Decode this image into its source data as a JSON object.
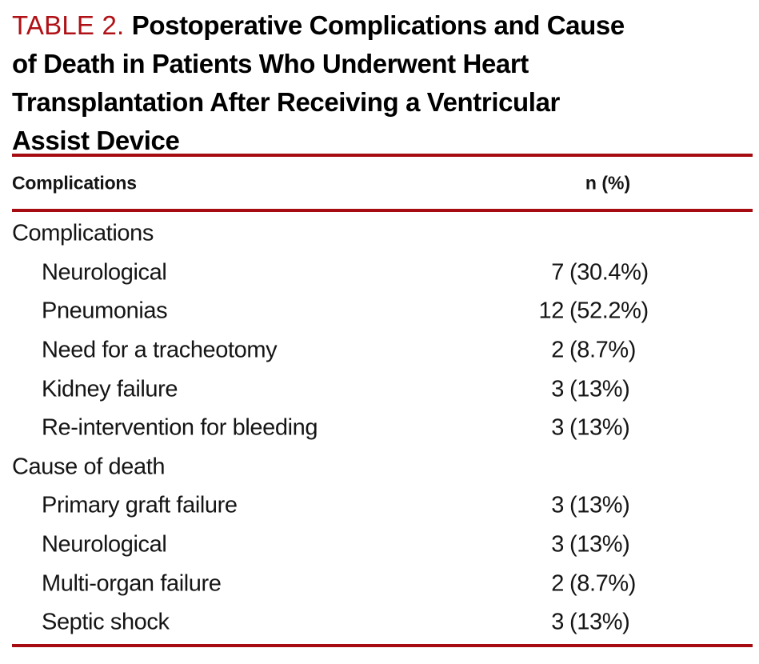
{
  "table": {
    "label": "TABLE 2.",
    "title_lines": [
      "Postoperative Complications and Cause",
      "of Death in Patients Who Underwent Heart",
      "Transplantation After Receiving a Ventricular",
      "Assist Device"
    ],
    "title_full": "Postoperative Complications and Cause of Death in Patients Who Underwent Heart Transplantation After Receiving a Ventricular Assist Device",
    "columns": [
      "Complications",
      "n (%)"
    ],
    "rows": [
      {
        "label": "Complications",
        "n": "",
        "pct": "",
        "value": "",
        "indent": false,
        "section": true
      },
      {
        "label": "Neurological",
        "n": "7",
        "pct": "(30.4%)",
        "value": "7 (30.4%)",
        "indent": true,
        "section": false
      },
      {
        "label": "Pneumonias",
        "n": "12",
        "pct": "(52.2%)",
        "value": "12 (52.2%)",
        "indent": true,
        "section": false
      },
      {
        "label": "Need for a tracheotomy",
        "n": "2",
        "pct": "(8.7%)",
        "value": "2 (8.7%)",
        "indent": true,
        "section": false
      },
      {
        "label": "Kidney failure",
        "n": "3",
        "pct": "(13%)",
        "value": "3 (13%)",
        "indent": true,
        "section": false
      },
      {
        "label": "Re-intervention for bleeding",
        "n": "3",
        "pct": "(13%)",
        "value": "3 (13%)",
        "indent": true,
        "section": false
      },
      {
        "label": "Cause of death",
        "n": "",
        "pct": "",
        "value": "",
        "indent": false,
        "section": true
      },
      {
        "label": "Primary graft failure",
        "n": "3",
        "pct": "(13%)",
        "value": "3 (13%)",
        "indent": true,
        "section": false
      },
      {
        "label": "Neurological",
        "n": "3",
        "pct": "(13%)",
        "value": "3 (13%)",
        "indent": true,
        "section": false
      },
      {
        "label": "Multi-organ failure",
        "n": "2",
        "pct": "(8.7%)",
        "value": "2 (8.7%)",
        "indent": true,
        "section": false
      },
      {
        "label": "Septic shock",
        "n": "3",
        "pct": "(13%)",
        "value": "3 (13%)",
        "indent": true,
        "section": false
      }
    ],
    "colors": {
      "rule_red": "#a50b10",
      "label_red": "#b01116",
      "text_black": "#151515"
    }
  }
}
